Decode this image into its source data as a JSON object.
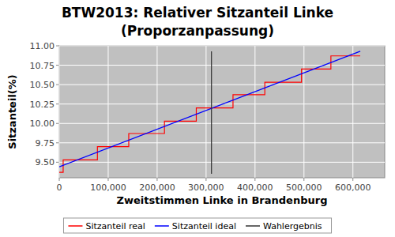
{
  "chart_data": {
    "type": "line",
    "title": "BTW2013: Relativer Sitzanteil Linke",
    "subtitle": "(Proporzanpassung)",
    "x_label": "Zweitstimmen Linke in Brandenburg",
    "y_label": "Sitzanteil(%)",
    "xlim": [
      0,
      665000
    ],
    "ylim": [
      9.3,
      11.0
    ],
    "xticks": [
      0,
      {
        "value": 100000,
        "label": "100,000"
      },
      {
        "value": 200000,
        "label": "200,000"
      },
      {
        "value": 300000,
        "label": "300,000"
      },
      {
        "value": 400000,
        "label": "400,000"
      },
      {
        "value": 500000,
        "label": "500,000"
      },
      {
        "value": 600000,
        "label": "600,000"
      }
    ],
    "yticks": [
      {
        "value": 9.5,
        "label": "9.50"
      },
      {
        "value": 9.75,
        "label": "9.75"
      },
      {
        "value": 10,
        "label": "10.00"
      },
      {
        "value": 10.25,
        "label": "10.25"
      },
      {
        "value": 10.5,
        "label": "10.50"
      },
      {
        "value": 10.75,
        "label": "10.75"
      },
      {
        "value": 11,
        "label": "11.00"
      }
    ],
    "grid": true,
    "legend": "bottom",
    "series": [
      {
        "name": "Sitzanteil real",
        "color": "#ff0000",
        "line_style": "step",
        "x": [
          0,
          8000,
          78000,
          142000,
          215000,
          280000,
          355000,
          420000,
          495000,
          555000,
          615000
        ],
        "values": [
          9.37,
          9.53,
          9.7,
          9.87,
          10.03,
          10.2,
          10.37,
          10.53,
          10.7,
          10.87,
          10.87
        ]
      },
      {
        "name": "Sitzanteil ideal",
        "color": "#0000ff",
        "line_style": "solid",
        "x": [
          0,
          615000
        ],
        "values": [
          9.44,
          10.93
        ]
      },
      {
        "name": "Wahlergebnis",
        "color": "#333333",
        "line_style": "solid",
        "x": [
          311000,
          311000
        ],
        "values": [
          9.35,
          10.93
        ]
      }
    ]
  }
}
